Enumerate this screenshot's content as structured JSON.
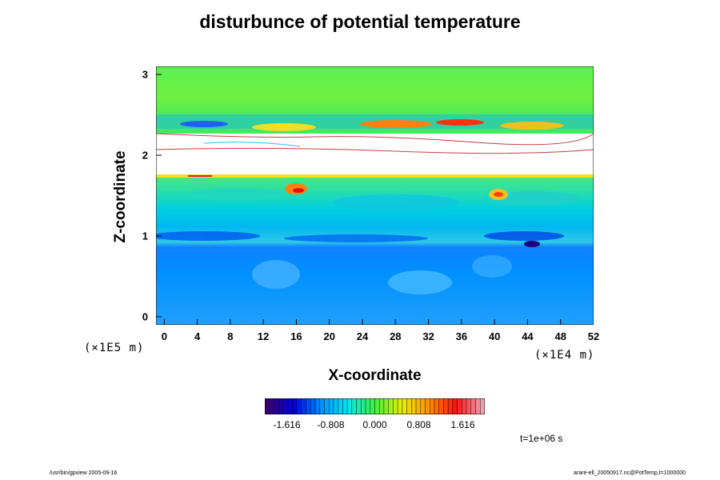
{
  "chart_data": {
    "type": "heatmap",
    "title": "disturbunce of potential temperature",
    "xlabel": "X-coordinate",
    "ylabel": "Z-coordinate",
    "xunit": "(×1E4 m)",
    "yunit": "(×1E5 m)",
    "xlim": [
      -1,
      52
    ],
    "ylim": [
      -0.1,
      3.1
    ],
    "xticks": [
      "0",
      "4",
      "8",
      "12",
      "16",
      "20",
      "24",
      "28",
      "32",
      "36",
      "40",
      "44",
      "48",
      "52"
    ],
    "yticks": [
      "0",
      "1",
      "2",
      "3"
    ],
    "colorbar": {
      "range": [
        -2.02,
        2.02
      ],
      "labels": [
        "-1.616",
        "-0.808",
        "0.000",
        "0.808",
        "1.616"
      ],
      "colors": [
        "#3a0070",
        "#0000e0",
        "#0090ff",
        "#00e8f0",
        "#40f040",
        "#e8f000",
        "#ff9000",
        "#ff1010",
        "#f0a0b0"
      ]
    },
    "time_label": "t=1e+06 s"
  },
  "footer": {
    "left": "/usr/bin/gpview 2005-09-16",
    "right": "arare-ell_20050917.nc@PotTemp,t=1000000"
  }
}
